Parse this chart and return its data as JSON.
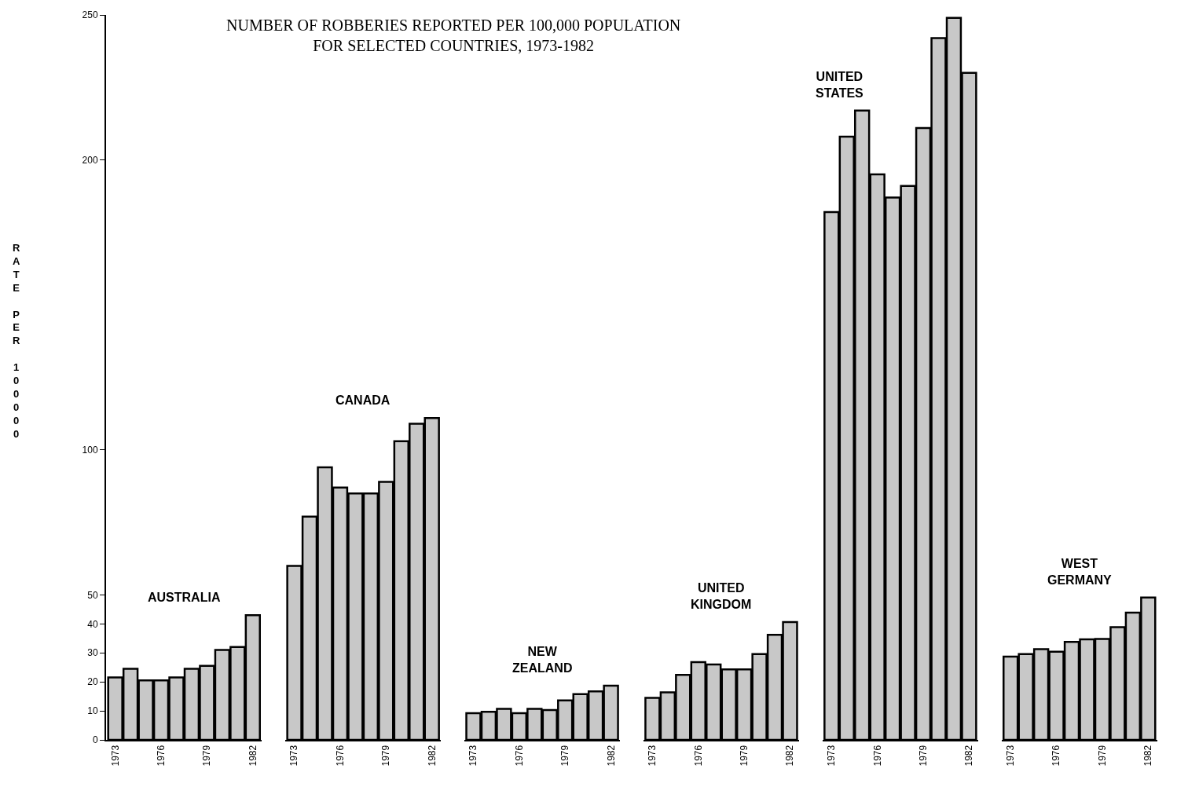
{
  "chart_data": [
    {
      "type": "bar",
      "title": "NUMBER OF ROBBERIES REPORTED PER 100,000 POPULATION\nFOR SELECTED COUNTRIES, 1973-1982",
      "ylabel": "RATE PER 100000",
      "annotations": [
        "AUSTRALIA"
      ],
      "categories": [
        "1973",
        null,
        null,
        "1976",
        null,
        null,
        "1979",
        null,
        null,
        "1982"
      ],
      "values": [
        21.5,
        24.5,
        20.5,
        20.5,
        21.5,
        24.5,
        25.5,
        31,
        32,
        43
      ],
      "color": "#c8c8c8",
      "ylim": [
        0,
        250
      ],
      "yticks": [
        0,
        10,
        20,
        30,
        40,
        50,
        100,
        200,
        250
      ]
    },
    {
      "type": "bar",
      "annotations": [
        "CANADA"
      ],
      "categories": [
        "1973",
        null,
        null,
        "1976",
        null,
        null,
        "1979",
        null,
        null,
        "1982"
      ],
      "values": [
        60,
        77,
        94,
        87,
        85,
        85,
        89,
        103,
        109,
        111
      ],
      "color": "#c8c8c8",
      "ylim": [
        0,
        250
      ],
      "yticks": [
        0,
        10,
        20,
        30,
        40,
        50,
        100,
        200,
        250
      ],
      "tick_labels": "x"
    },
    {
      "type": "bar",
      "annotations": [
        "NEW\nZEALAND"
      ],
      "categories": [
        "1973",
        null,
        null,
        "1976",
        null,
        null,
        "1979",
        null,
        null,
        "1982"
      ],
      "values": [
        9.2,
        9.7,
        10.7,
        9.2,
        10.7,
        10.3,
        13.6,
        15.8,
        16.7,
        18.7
      ],
      "color": "#c8c8c8",
      "ylim": [
        0,
        250
      ],
      "yticks": [
        0,
        10,
        20,
        30,
        40,
        50,
        100,
        200,
        250
      ],
      "tick_labels": "x"
    },
    {
      "type": "bar",
      "annotations": [
        "UNITED\nKINGDOM"
      ],
      "categories": [
        "1973",
        null,
        null,
        "1976",
        null,
        null,
        "1979",
        null,
        null,
        "1982"
      ],
      "values": [
        14.5,
        16.4,
        22.4,
        26.8,
        26,
        24.3,
        24.3,
        29.6,
        36.2,
        40.6
      ],
      "color": "#c8c8c8",
      "ylim": [
        0,
        250
      ],
      "yticks": [
        0,
        10,
        20,
        30,
        40,
        50,
        100,
        200,
        250
      ],
      "tick_labels": "x"
    },
    {
      "type": "bar",
      "annotations": [
        "UNITED\nSTATES"
      ],
      "categories": [
        "1973",
        null,
        null,
        "1976",
        null,
        null,
        "1979",
        null,
        null,
        "1982"
      ],
      "values": [
        182,
        208,
        217,
        195,
        187,
        191,
        211,
        242,
        249,
        230
      ],
      "color": "#c8c8c8",
      "ylim": [
        0,
        250
      ],
      "yticks": [
        0,
        10,
        20,
        30,
        40,
        50,
        100,
        200,
        250
      ],
      "tick_labels": "x"
    },
    {
      "type": "bar",
      "annotations": [
        "WEST\nGERMANY"
      ],
      "categories": [
        "1973",
        null,
        null,
        "1976",
        null,
        null,
        "1979",
        null,
        null,
        "1982"
      ],
      "values": [
        28.7,
        29.6,
        31.3,
        30.4,
        33.8,
        34.7,
        34.8,
        38.9,
        43.9,
        49.1
      ],
      "color": "#c8c8c8",
      "ylim": [
        0,
        250
      ],
      "yticks": [
        0,
        10,
        20,
        30,
        40,
        50,
        100,
        200,
        250
      ],
      "tick_labels": "x"
    }
  ]
}
